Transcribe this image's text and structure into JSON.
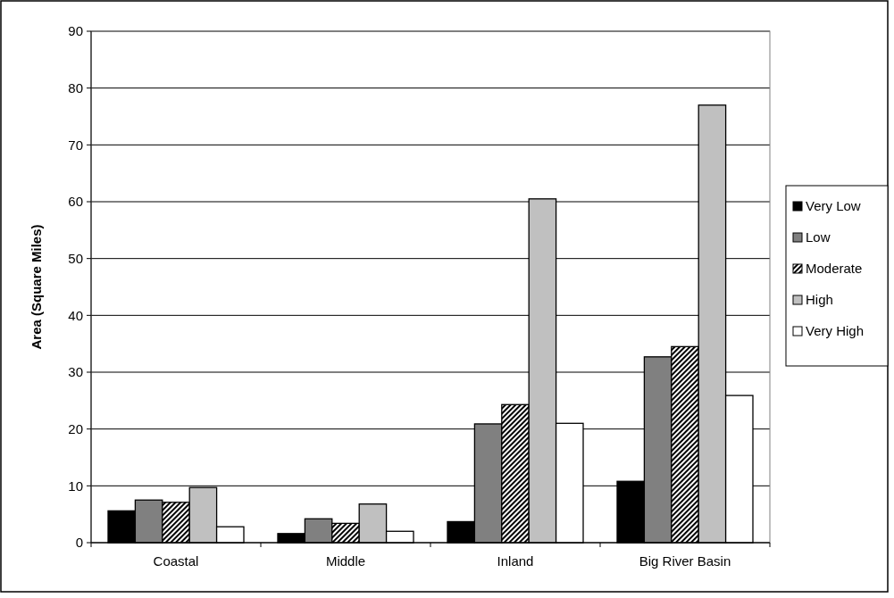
{
  "chart_data": {
    "type": "bar",
    "ylabel": "Area (Square Miles)",
    "categories": [
      "Coastal",
      "Middle",
      "Inland",
      "Big River Basin"
    ],
    "series": [
      {
        "name": "Very Low",
        "color": "#000000",
        "values": [
          5.6,
          1.6,
          3.7,
          10.8
        ]
      },
      {
        "name": "Low",
        "color": "#808080",
        "values": [
          7.5,
          4.2,
          20.9,
          32.7
        ]
      },
      {
        "name": "Moderate",
        "color": "#000000",
        "values": [
          7.1,
          3.4,
          24.3,
          34.5
        ]
      },
      {
        "name": "High",
        "color": "#c0c0c0",
        "values": [
          9.7,
          6.8,
          60.5,
          77
        ]
      },
      {
        "name": "Very High",
        "color": "#ffffff",
        "values": [
          2.8,
          2.0,
          21,
          25.9
        ]
      }
    ],
    "ylim": [
      0,
      90
    ],
    "yticks": [
      0,
      10,
      20,
      30,
      40,
      50,
      60,
      70,
      80,
      90
    ],
    "grid": "y",
    "legend": "right"
  }
}
